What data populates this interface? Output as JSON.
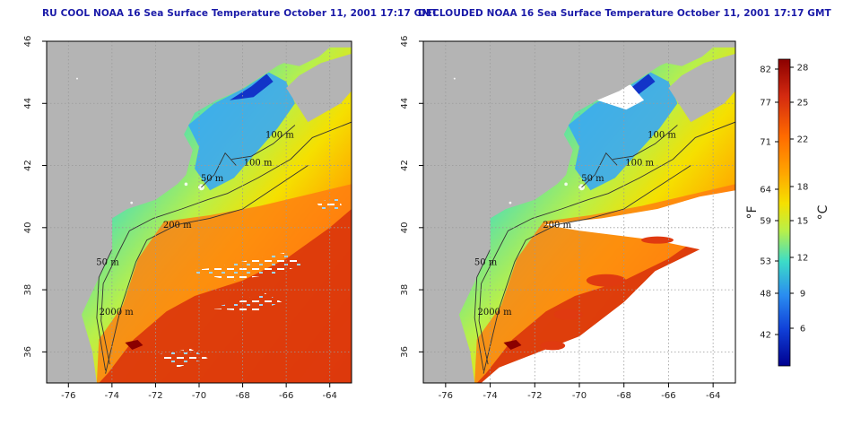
{
  "panels": [
    {
      "id": "left",
      "title": "RU COOL NOAA 16 Sea Surface Temperature October 11, 2001 17:17 GMT",
      "clouds_removed": false
    },
    {
      "id": "right",
      "title": "DECLOUDED NOAA 16 Sea Surface Temperature October 11, 2001 17:17 GMT",
      "clouds_removed": true
    }
  ],
  "map": {
    "lon_ticks": [
      "-76",
      "-74",
      "-72",
      "-70",
      "-68",
      "-66",
      "-64"
    ],
    "lat_ticks": [
      "36",
      "38",
      "40",
      "42",
      "44",
      "46"
    ],
    "lon_range": [
      -77,
      -63
    ],
    "lat_range": [
      35,
      46
    ],
    "grid": "dotted",
    "land_color": "#b4b4b4",
    "cloud_color": "#ffffff",
    "contour_labels": [
      {
        "text": "100 m",
        "lon": -66.3,
        "lat": 42.9
      },
      {
        "text": "100 m",
        "lon": -67.3,
        "lat": 42.0
      },
      {
        "text": "50 m",
        "lon": -69.4,
        "lat": 41.5
      },
      {
        "text": "200 m",
        "lon": -71.0,
        "lat": 40.0
      },
      {
        "text": "50 m",
        "lon": -74.2,
        "lat": 38.8
      },
      {
        "text": "2000 m",
        "lon": -73.8,
        "lat": 37.2
      }
    ]
  },
  "colorbar": {
    "fahrenheit_ticks": [
      "82",
      "77",
      "71",
      "64",
      "59",
      "53",
      "48",
      "42"
    ],
    "celsius_ticks": [
      "28",
      "25",
      "22",
      "18",
      "15",
      "12",
      "9",
      "6"
    ],
    "fahrenheit_label": "°F",
    "celsius_label": "°C",
    "colors": [
      "#8b0000",
      "#d42a10",
      "#ff6a00",
      "#ffa500",
      "#f5e000",
      "#b8f04a",
      "#3cdcc8",
      "#2a8cf0",
      "#1040d8",
      "#000090"
    ]
  }
}
